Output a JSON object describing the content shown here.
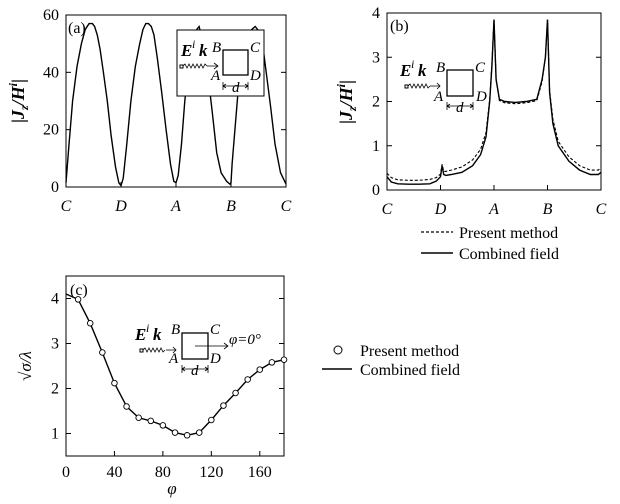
{
  "chart_data": [
    {
      "panel": "(a)",
      "type": "line",
      "ylabel_parts": [
        "|",
        "J",
        "z",
        "/",
        "H",
        "i",
        "|"
      ],
      "ylim": [
        0,
        60
      ],
      "yticks": [
        0,
        20,
        40,
        60
      ],
      "xticks": [
        "C",
        "D",
        "A",
        "B",
        "C"
      ],
      "xlim": [
        0,
        4
      ],
      "inset": {
        "E": "E",
        "Esup": "i",
        "k": "k",
        "d": "d",
        "corners": [
          "B",
          "C",
          "A",
          "D"
        ]
      },
      "series": [
        {
          "x": [
            0.0,
            0.05,
            0.12,
            0.2,
            0.28,
            0.35,
            0.42,
            0.48,
            0.52,
            0.57,
            0.62,
            0.68,
            0.75,
            0.82,
            0.9,
            0.96,
            1.0,
            1.04,
            1.1,
            1.18,
            1.26,
            1.34,
            1.4,
            1.45,
            1.5,
            1.55,
            1.6,
            1.66,
            1.74,
            1.82,
            1.9,
            1.96,
            2.0,
            2.04,
            2.1,
            2.16,
            2.24,
            2.3,
            2.38,
            2.42,
            2.46,
            2.52,
            2.6,
            2.66,
            2.74,
            2.82,
            2.92,
            2.98,
            3.0,
            3.02,
            3.08,
            3.14,
            3.22,
            3.3,
            3.38,
            3.44,
            3.48,
            3.52,
            3.58,
            3.64,
            3.72,
            3.8,
            3.9,
            4.0
          ],
          "y": [
            1.5,
            14,
            30,
            42,
            50,
            55,
            57,
            57,
            56,
            53,
            48,
            40,
            30,
            18,
            7,
            1.5,
            0.5,
            3,
            14,
            30,
            42,
            50,
            55,
            57,
            57,
            56,
            53,
            45,
            33,
            20,
            8,
            2,
            1.5,
            4,
            15,
            30,
            44,
            52,
            55,
            56,
            53,
            47,
            36,
            26,
            12,
            5,
            2,
            1,
            1.5,
            8,
            22,
            36,
            46,
            52,
            55,
            56,
            55,
            54,
            49,
            40,
            28,
            15,
            5,
            1
          ]
        }
      ]
    },
    {
      "panel": "(b)",
      "type": "line",
      "ylabel_parts": [
        "|",
        "J",
        "z",
        "/",
        "H",
        "i",
        "|"
      ],
      "ylim": [
        0,
        4
      ],
      "yticks": [
        0,
        1,
        2,
        3,
        4
      ],
      "xticks": [
        "C",
        "D",
        "A",
        "B",
        "C"
      ],
      "xlim": [
        0,
        4
      ],
      "inset": {
        "E": "E",
        "Esup": "i",
        "k": "k",
        "d": "d",
        "corners": [
          "B",
          "C",
          "A",
          "D"
        ]
      },
      "series": [
        {
          "name": "Combined field",
          "x": [
            0.0,
            0.08,
            0.2,
            0.4,
            0.6,
            0.8,
            0.92,
            1.0,
            1.03,
            1.06,
            1.1,
            1.2,
            1.4,
            1.6,
            1.75,
            1.85,
            1.92,
            1.96,
            2.0,
            2.04,
            2.1,
            2.2,
            2.4,
            2.6,
            2.8,
            2.9,
            2.96,
            3.0,
            3.04,
            3.1,
            3.2,
            3.4,
            3.6,
            3.8,
            3.95,
            4.0
          ],
          "y": [
            0.3,
            0.18,
            0.14,
            0.13,
            0.13,
            0.14,
            0.2,
            0.3,
            0.55,
            0.35,
            0.33,
            0.35,
            0.4,
            0.55,
            0.8,
            1.2,
            2.0,
            2.8,
            3.85,
            2.5,
            2.05,
            2.0,
            1.98,
            2.0,
            2.05,
            2.5,
            3.0,
            3.85,
            2.2,
            1.5,
            1.0,
            0.65,
            0.45,
            0.35,
            0.35,
            0.4
          ]
        },
        {
          "name": "Present method",
          "x": [
            0.0,
            0.08,
            0.2,
            0.4,
            0.6,
            0.8,
            0.92,
            1.0,
            1.03,
            1.06,
            1.1,
            1.2,
            1.4,
            1.6,
            1.75,
            1.85,
            1.92,
            1.96,
            2.0,
            2.04,
            2.1,
            2.2,
            2.4,
            2.6,
            2.8,
            2.9,
            2.96,
            3.0,
            3.04,
            3.1,
            3.2,
            3.4,
            3.6,
            3.8,
            3.95,
            4.0
          ],
          "y": [
            0.38,
            0.28,
            0.23,
            0.22,
            0.22,
            0.24,
            0.28,
            0.36,
            0.58,
            0.42,
            0.42,
            0.45,
            0.52,
            0.68,
            0.92,
            1.3,
            2.05,
            2.85,
            3.85,
            2.5,
            2.02,
            1.97,
            1.95,
            1.97,
            2.02,
            2.45,
            3.0,
            3.85,
            2.25,
            1.6,
            1.1,
            0.75,
            0.55,
            0.45,
            0.45,
            0.5
          ]
        }
      ],
      "legend": [
        {
          "style": "dashed",
          "label": "Present method"
        },
        {
          "style": "solid",
          "label": "Combined field"
        }
      ]
    },
    {
      "panel": "(c)",
      "type": "line",
      "xlabel": "φ",
      "ylabel": "√σ/λ",
      "xlim": [
        0,
        180
      ],
      "ylim": [
        0.5,
        4.5
      ],
      "xticks": [
        0,
        40,
        80,
        120,
        160
      ],
      "yticks": [
        1,
        2,
        3,
        4
      ],
      "inset": {
        "E": "E",
        "Esup": "i",
        "k": "k",
        "d": "d",
        "corners": [
          "B",
          "C",
          "A",
          "D"
        ],
        "angle": "φ=0°"
      },
      "series": [
        {
          "name": "Combined field",
          "x": [
            0,
            10,
            20,
            30,
            40,
            50,
            60,
            70,
            80,
            90,
            100,
            110,
            120,
            130,
            140,
            150,
            160,
            170,
            180
          ],
          "y": [
            4.1,
            3.98,
            3.45,
            2.8,
            2.12,
            1.6,
            1.35,
            1.28,
            1.18,
            1.02,
            0.96,
            1.02,
            1.3,
            1.62,
            1.9,
            2.2,
            2.42,
            2.58,
            2.64
          ]
        },
        {
          "name": "Present method",
          "x": [
            10,
            20,
            30,
            40,
            50,
            60,
            70,
            80,
            90,
            100,
            110,
            120,
            130,
            140,
            150,
            160,
            170,
            180
          ],
          "y": [
            3.98,
            3.45,
            2.8,
            2.12,
            1.6,
            1.35,
            1.28,
            1.18,
            1.02,
            0.96,
            1.02,
            1.3,
            1.62,
            1.9,
            2.2,
            2.42,
            2.58,
            2.64
          ]
        }
      ],
      "legend": [
        {
          "style": "circle",
          "label": "Present method"
        },
        {
          "style": "solid",
          "label": "Combined field"
        }
      ]
    }
  ]
}
